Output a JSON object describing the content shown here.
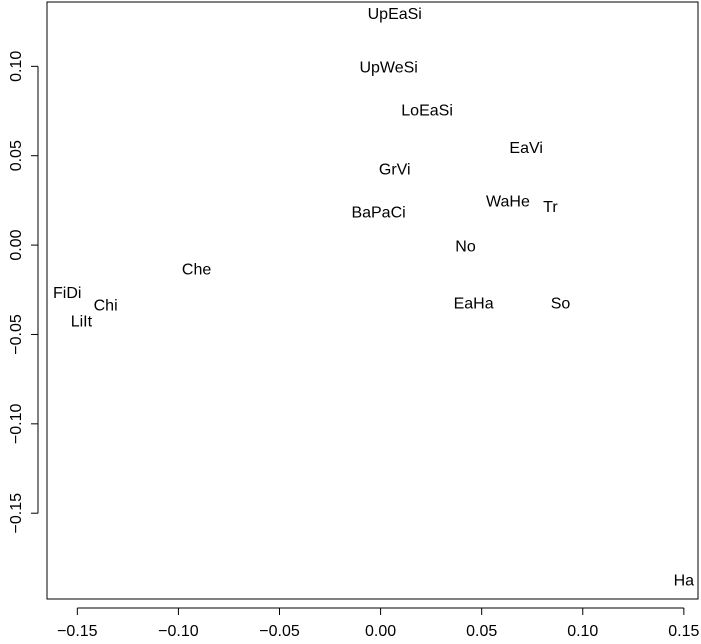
{
  "chart_data": {
    "type": "scatter",
    "title": "",
    "xlabel": "",
    "ylabel": "",
    "xlim": [
      -0.165,
      0.157
    ],
    "ylim": [
      -0.198,
      0.136
    ],
    "x_ticks": [
      -0.15,
      -0.1,
      -0.05,
      0.0,
      0.05,
      0.1,
      0.15
    ],
    "x_tick_labels": [
      "−0.15",
      "−0.10",
      "−0.05",
      "0.00",
      "0.05",
      "0.10",
      "0.15"
    ],
    "y_ticks": [
      -0.15,
      -0.1,
      -0.05,
      0.0,
      0.05,
      0.1
    ],
    "y_tick_labels": [
      "−0.15",
      "−0.10",
      "−0.05",
      "0.00",
      "0.05",
      "0.10"
    ],
    "grid": false,
    "points": [
      {
        "label": "UpEaSi",
        "x": 0.007,
        "y": 0.129
      },
      {
        "label": "UpWeSi",
        "x": 0.004,
        "y": 0.099
      },
      {
        "label": "LoEaSi",
        "x": 0.023,
        "y": 0.075
      },
      {
        "label": "EaVi",
        "x": 0.072,
        "y": 0.054
      },
      {
        "label": "GrVi",
        "x": 0.007,
        "y": 0.042
      },
      {
        "label": "WaHe",
        "x": 0.063,
        "y": 0.024
      },
      {
        "label": "Tr",
        "x": 0.084,
        "y": 0.021
      },
      {
        "label": "BaPaCi",
        "x": -0.001,
        "y": 0.018
      },
      {
        "label": "No",
        "x": 0.042,
        "y": -0.001
      },
      {
        "label": "Che",
        "x": -0.091,
        "y": -0.014
      },
      {
        "label": "FiDi",
        "x": -0.155,
        "y": -0.027
      },
      {
        "label": "Chi",
        "x": -0.136,
        "y": -0.034
      },
      {
        "label": "LiIt",
        "x": -0.148,
        "y": -0.043
      },
      {
        "label": "EaHa",
        "x": 0.046,
        "y": -0.033
      },
      {
        "label": "So",
        "x": 0.089,
        "y": -0.033
      },
      {
        "label": "Ha",
        "x": 0.15,
        "y": -0.188
      }
    ]
  }
}
